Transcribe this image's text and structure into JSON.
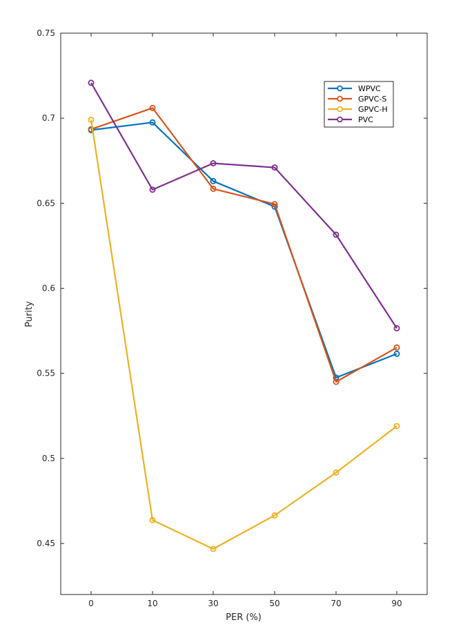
{
  "chart_data": {
    "type": "line",
    "title": "",
    "xlabel": "PER (%)",
    "ylabel": "Purity",
    "categories": [
      "0",
      "10",
      "30",
      "50",
      "70",
      "90"
    ],
    "ylim": [
      0.42,
      0.75
    ],
    "yticks": [
      "0.45",
      "0.5",
      "0.55",
      "0.6",
      "0.65",
      "0.7",
      "0.75"
    ],
    "grid": false,
    "legend_position": "top-right",
    "series": [
      {
        "name": "WPVC",
        "color": "#0072BD",
        "values": [
          0.693,
          0.6975,
          0.663,
          0.648,
          0.5475,
          0.5615
        ]
      },
      {
        "name": "GPVC-S",
        "color": "#D95319",
        "values": [
          0.6935,
          0.706,
          0.6585,
          0.6495,
          0.545,
          0.5652
        ]
      },
      {
        "name": "GPVC-H",
        "color": "#EDB120",
        "values": [
          0.699,
          0.4637,
          0.4468,
          0.4665,
          0.4917,
          0.519
        ]
      },
      {
        "name": "PVC",
        "color": "#7E2F8E",
        "values": [
          0.7208,
          0.658,
          0.6735,
          0.671,
          0.6315,
          0.5765
        ]
      }
    ]
  }
}
